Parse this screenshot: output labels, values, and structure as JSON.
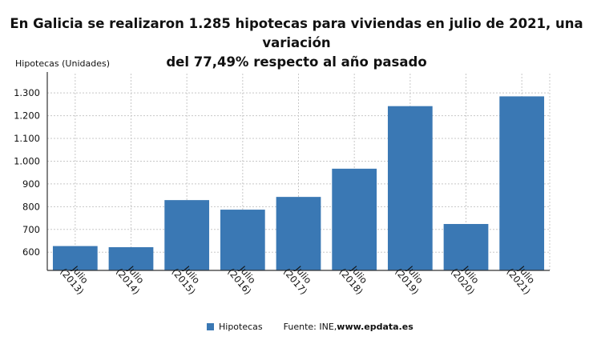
{
  "chart_data": {
    "type": "bar",
    "title": "En Galicia se realizaron 1.285 hipotecas para viviendas en julio de 2021, una variación\ndel 77,49% respecto al año pasado",
    "ylabel": "Hipotecas (Unidades)",
    "xlabel": "",
    "categories": [
      "Julio (2013)",
      "Julio (2014)",
      "Julio (2015)",
      "Julio (2016)",
      "Julio (2017)",
      "Julio (2018)",
      "Julio (2019)",
      "Julio (2020)",
      "Julio (2021)"
    ],
    "category_lines": [
      [
        "Julio",
        "(2013)"
      ],
      [
        "Julio",
        "(2014)"
      ],
      [
        "Julio",
        "(2015)"
      ],
      [
        "Julio",
        "(2016)"
      ],
      [
        "Julio",
        "(2017)"
      ],
      [
        "Julio",
        "(2018)"
      ],
      [
        "Julio",
        "(2019)"
      ],
      [
        "Julio",
        "(2020)"
      ],
      [
        "Julio",
        "(2021)"
      ]
    ],
    "series": [
      {
        "name": "Hipotecas",
        "values": [
          627,
          622,
          829,
          787,
          843,
          967,
          1242,
          724,
          1285
        ]
      }
    ],
    "ylim": [
      520,
      1385
    ],
    "yticks": [
      600,
      700,
      800,
      900,
      1000,
      1100,
      1200,
      1300
    ],
    "ytick_labels": [
      "600",
      "700",
      "800",
      "900",
      "1.000",
      "1.100",
      "1.200",
      "1.300"
    ],
    "grid": true,
    "legend_position": "bottom",
    "bar_color": "#3a78b4"
  },
  "legend": {
    "series_label": "Hipotecas",
    "source_prefix": "Fuente: INE, ",
    "source_site": "www.epdata.es"
  }
}
